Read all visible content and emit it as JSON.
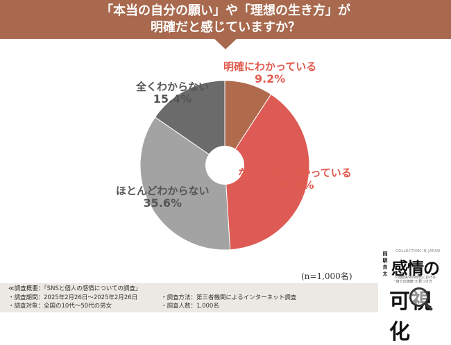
{
  "header": {
    "title_line_1": "「本当の自分の願い」や「理想の生き方」が",
    "title_line_2": "明確だと感じていますか？"
  },
  "chart_data": {
    "type": "pie",
    "donut": true,
    "categories": [
      "明確にわかっている",
      "なんとなくわかっている",
      "ほとんどわからない",
      "全くわからない"
    ],
    "values": [
      9.2,
      39.8,
      35.6,
      15.4
    ],
    "value_labels": [
      "9.2%",
      "39.8%",
      "35.6%",
      "15.4%"
    ],
    "colors": [
      "#b06b4d",
      "#de5b55",
      "#a3a3a3",
      "#6b6b6b"
    ],
    "label_colors": [
      "#e05a4e",
      "#e05a4e",
      "#555555",
      "#555555"
    ],
    "start": "12 o'clock, clockwise",
    "sample_size": "(n=1,000名)"
  },
  "footer": {
    "overview": "≪調査概要：「SNSと個人の感情についての調査」",
    "period": "・調査期間：2025年2月26日～2025年2月26日",
    "target": "・調査対象：全国の10代～50代の男女",
    "method": "・調査方法：第三者機関によるインターネット調査",
    "count": "・調査人数：1,000名"
  },
  "logo": {
    "caption_top": "COLLECTION IN JAPAN",
    "author": "岡 馴 良 太",
    "big_top": "感情の",
    "subtitle_1": "人間関係SNS時代における",
    "subtitle_2": "“自分の価値”の見つけ方",
    "big_bottom": "可視化"
  }
}
